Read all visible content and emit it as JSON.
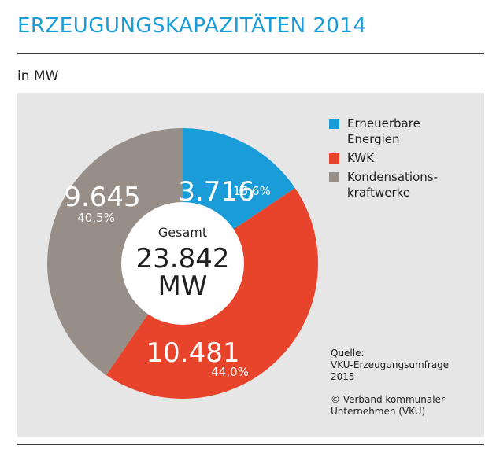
{
  "header": {
    "title": "ERZEUGUNGSKAPAZITÄTEN 2014",
    "unit": "in MW"
  },
  "chart_data": {
    "type": "pie",
    "title": "ERZEUGUNGSKAPAZITÄTEN 2014",
    "unit": "in MW",
    "categories": [
      "Erneuerbare Energien",
      "KWK",
      "Kondensationskraftwerke"
    ],
    "slices": [
      {
        "name": "Erneuerbare Energien",
        "value": 3716,
        "value_label": "3.716",
        "percent_label": "15,6%",
        "color": "#1a9cd8"
      },
      {
        "name": "KWK",
        "value": 10481,
        "value_label": "10.481",
        "percent_label": "44,0%",
        "color": "#e8432b"
      },
      {
        "name": "Kondensationskraftwerke",
        "value": 9645,
        "value_label": "9.645",
        "percent_label": "40,5%",
        "color": "#978e87"
      }
    ],
    "center": {
      "label": "Gesamt",
      "total": "23.842",
      "unit": "MW"
    },
    "legend_position": "top-right"
  },
  "legend": {
    "items": [
      {
        "label": "Erneuerbare\nEnergien",
        "color": "#1a9cd8"
      },
      {
        "label": "KWK",
        "color": "#e8432b"
      },
      {
        "label": "Kondensations-\nkraftwerke",
        "color": "#978e87"
      }
    ]
  },
  "source": {
    "line1": "Quelle:\nVKU-Erzeugungsumfrage\n2015",
    "line2": "© Verband kommunaler\nUnternehmen (VKU)"
  }
}
